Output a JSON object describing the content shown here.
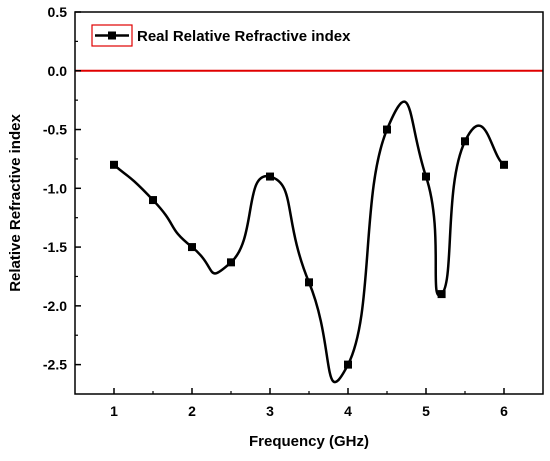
{
  "chart_data": {
    "type": "line",
    "title": "",
    "xlabel": "Frequency (GHz)",
    "ylabel": "Relative Refractive index",
    "xlim": [
      0.5,
      6.5
    ],
    "ylim": [
      -2.75,
      0.5
    ],
    "xticks": [
      1,
      2,
      3,
      4,
      5,
      6
    ],
    "xtick_labels": [
      "1",
      "2",
      "3",
      "4",
      "5",
      "6"
    ],
    "yticks": [
      0.5,
      0.0,
      -0.5,
      -1.0,
      -1.5,
      -2.0,
      -2.5
    ],
    "ytick_labels": [
      "0.5",
      "0.0",
      "-0.5",
      "-1.0",
      "-1.5",
      "-2.0",
      "-2.5"
    ],
    "grid": false,
    "legend_position": "top-left",
    "reference_line": {
      "y": 0.0,
      "color": "#e00000"
    },
    "series": [
      {
        "name": "Real Relative Refractive index",
        "color": "#000000",
        "marker": "square",
        "x": [
          1.0,
          1.5,
          2.0,
          2.5,
          3.0,
          3.5,
          4.0,
          4.5,
          5.0,
          5.2,
          5.5,
          6.0
        ],
        "values": [
          -0.8,
          -1.1,
          -1.5,
          -1.63,
          -0.9,
          -1.8,
          -2.5,
          -0.5,
          -0.9,
          -1.9,
          -0.6,
          -0.8
        ]
      }
    ]
  }
}
